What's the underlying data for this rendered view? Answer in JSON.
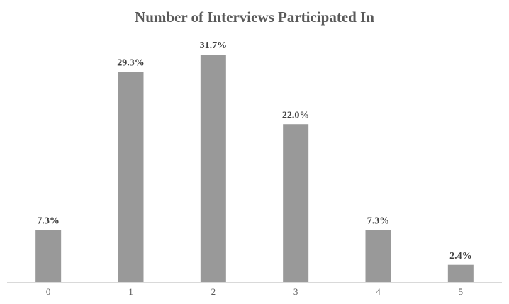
{
  "chart_data": {
    "type": "bar",
    "title": "Number of Interviews Participated In",
    "categories": [
      "0",
      "1",
      "2",
      "3",
      "4",
      "5"
    ],
    "values": [
      7.3,
      29.3,
      31.7,
      22.0,
      7.3,
      2.4
    ],
    "value_labels": [
      "7.3%",
      "29.3%",
      "31.7%",
      "22.0%",
      "7.3%",
      "2.4%"
    ],
    "color": "#999999"
  }
}
